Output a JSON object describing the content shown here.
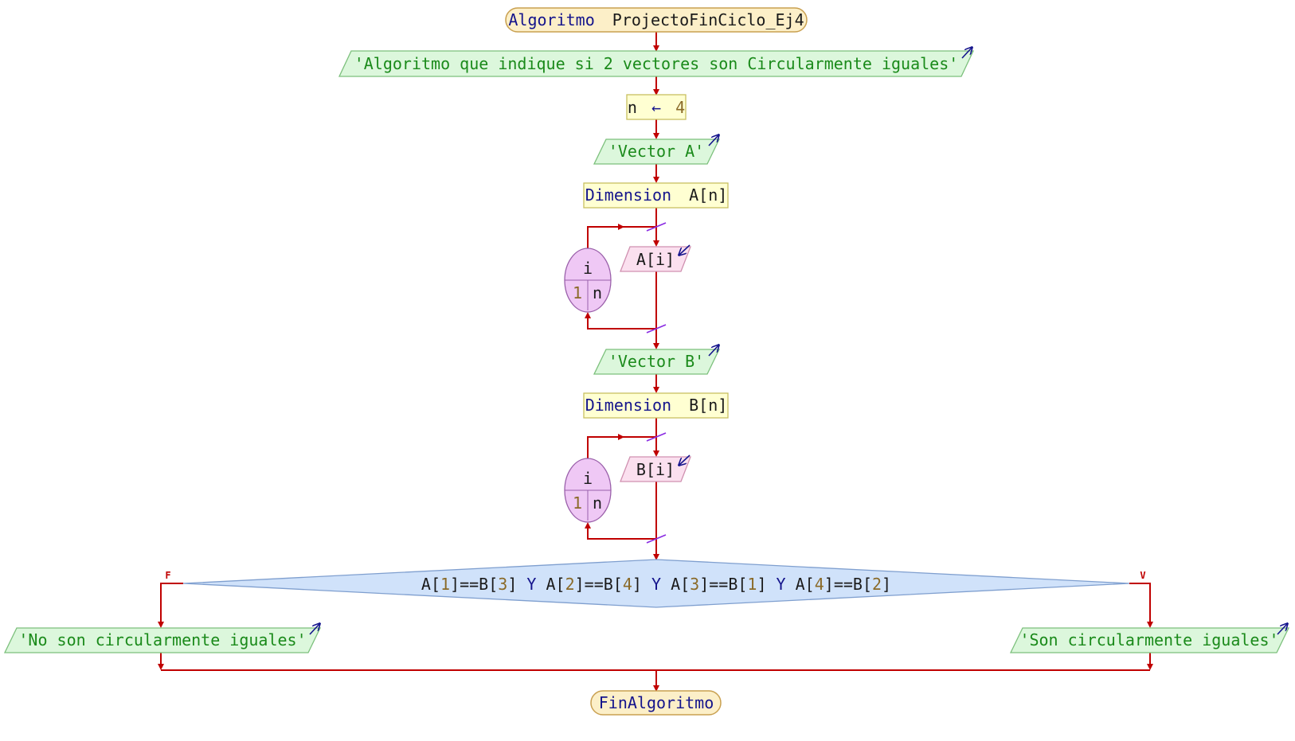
{
  "start": {
    "keyword": "Algoritmo",
    "name": "ProjectoFinCiclo_Ej4"
  },
  "intro_output": "'Algoritmo que indique si 2 vectores son Circularmente iguales'",
  "assign": {
    "var": "n",
    "arrow": "←",
    "value": "4"
  },
  "vector_a": {
    "output": "'Vector A'",
    "dim_keyword": "Dimension",
    "dim_expr": "A[n]",
    "loop": {
      "var": "i",
      "from": "1",
      "to": "n"
    },
    "read": "A[i]"
  },
  "vector_b": {
    "output": "'Vector B'",
    "dim_keyword": "Dimension",
    "dim_expr": "B[n]",
    "loop": {
      "var": "i",
      "from": "1",
      "to": "n"
    },
    "read": "B[i]"
  },
  "condition": {
    "parts": [
      {
        "t": "A[",
        "c": "id"
      },
      {
        "t": "1",
        "c": "num"
      },
      {
        "t": "]==B[",
        "c": "id"
      },
      {
        "t": "3",
        "c": "num"
      },
      {
        "t": "]",
        "c": "id"
      },
      {
        "t": " Y ",
        "c": "kw"
      },
      {
        "t": "A[",
        "c": "id"
      },
      {
        "t": "2",
        "c": "num"
      },
      {
        "t": "]==B[",
        "c": "id"
      },
      {
        "t": "4",
        "c": "num"
      },
      {
        "t": "]",
        "c": "id"
      },
      {
        "t": " Y ",
        "c": "kw"
      },
      {
        "t": "A[",
        "c": "id"
      },
      {
        "t": "3",
        "c": "num"
      },
      {
        "t": "]==B[",
        "c": "id"
      },
      {
        "t": "1",
        "c": "num"
      },
      {
        "t": "]",
        "c": "id"
      },
      {
        "t": " Y ",
        "c": "kw"
      },
      {
        "t": "A[",
        "c": "id"
      },
      {
        "t": "4",
        "c": "num"
      },
      {
        "t": "]==B[",
        "c": "id"
      },
      {
        "t": "2",
        "c": "num"
      },
      {
        "t": "]",
        "c": "id"
      }
    ],
    "false_label": "F",
    "true_label": "V"
  },
  "false_output": "'No son circularmente iguales'",
  "true_output": "'Son circularmente iguales'",
  "end": "FinAlgoritmo",
  "colors": {
    "wire": "#c00000",
    "terminal_fill": "#fcefc8",
    "terminal_stroke": "#c9a050",
    "output_fill": "#dcf7dc",
    "output_stroke": "#7cc07c",
    "process_fill": "#ffffd2",
    "process_stroke": "#c8c060",
    "input_fill": "#fbe0ef",
    "input_stroke": "#d090b0",
    "loop_fill": "#efc8f5",
    "loop_stroke": "#9a60aa",
    "decision_fill": "#d0e2fa",
    "decision_stroke": "#7f9fcf",
    "keyword": "#14148c",
    "number": "#8a6a28",
    "string": "#1a8a1a"
  }
}
